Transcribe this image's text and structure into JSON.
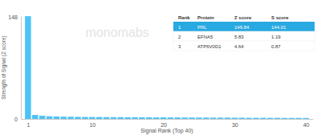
{
  "chart_data": {
    "type": "bar",
    "x_label": "Signal Rank (Top 40)",
    "y_label": "Strength of Signal (Z score)",
    "x": [
      1,
      2,
      3,
      4,
      5,
      6,
      7,
      8,
      9,
      10,
      11,
      12,
      13,
      14,
      15,
      16,
      17,
      18,
      19,
      20,
      21,
      22,
      23,
      24,
      25,
      26,
      27,
      28,
      29,
      30,
      31,
      32,
      33,
      34,
      35,
      36,
      37,
      38,
      39,
      40
    ],
    "values": [
      149.84,
      5.83,
      4.64,
      3.9,
      3.6,
      3.3,
      3.2,
      3.0,
      2.9,
      2.8,
      2.8,
      2.7,
      2.6,
      2.6,
      2.5,
      2.5,
      2.4,
      2.4,
      2.3,
      2.3,
      2.2,
      2.2,
      2.1,
      2.1,
      2.0,
      2.0,
      1.9,
      1.9,
      1.9,
      1.8,
      1.8,
      1.7,
      1.7,
      1.7,
      1.6,
      1.6,
      1.5,
      1.5,
      1.5,
      1.4
    ],
    "color": "#4fc3f7",
    "xlim": [
      0,
      41
    ],
    "xticks": [
      1,
      10,
      20,
      30,
      40
    ],
    "ylim": [
      0,
      150
    ],
    "yticks": [
      0,
      148
    ],
    "grid": false,
    "annotations": [
      {
        "text": "monomabs"
      }
    ],
    "table": {
      "columns": [
        "Rank",
        "Protein",
        "Z score",
        "S score"
      ],
      "rows": [
        [
          1,
          "PRL",
          149.84,
          144.01
        ],
        [
          2,
          "EFNA5",
          5.83,
          1.19
        ],
        [
          3,
          "ATP6V0D1",
          4.64,
          0.87
        ]
      ],
      "highlight_color": "#29a9e1"
    }
  }
}
